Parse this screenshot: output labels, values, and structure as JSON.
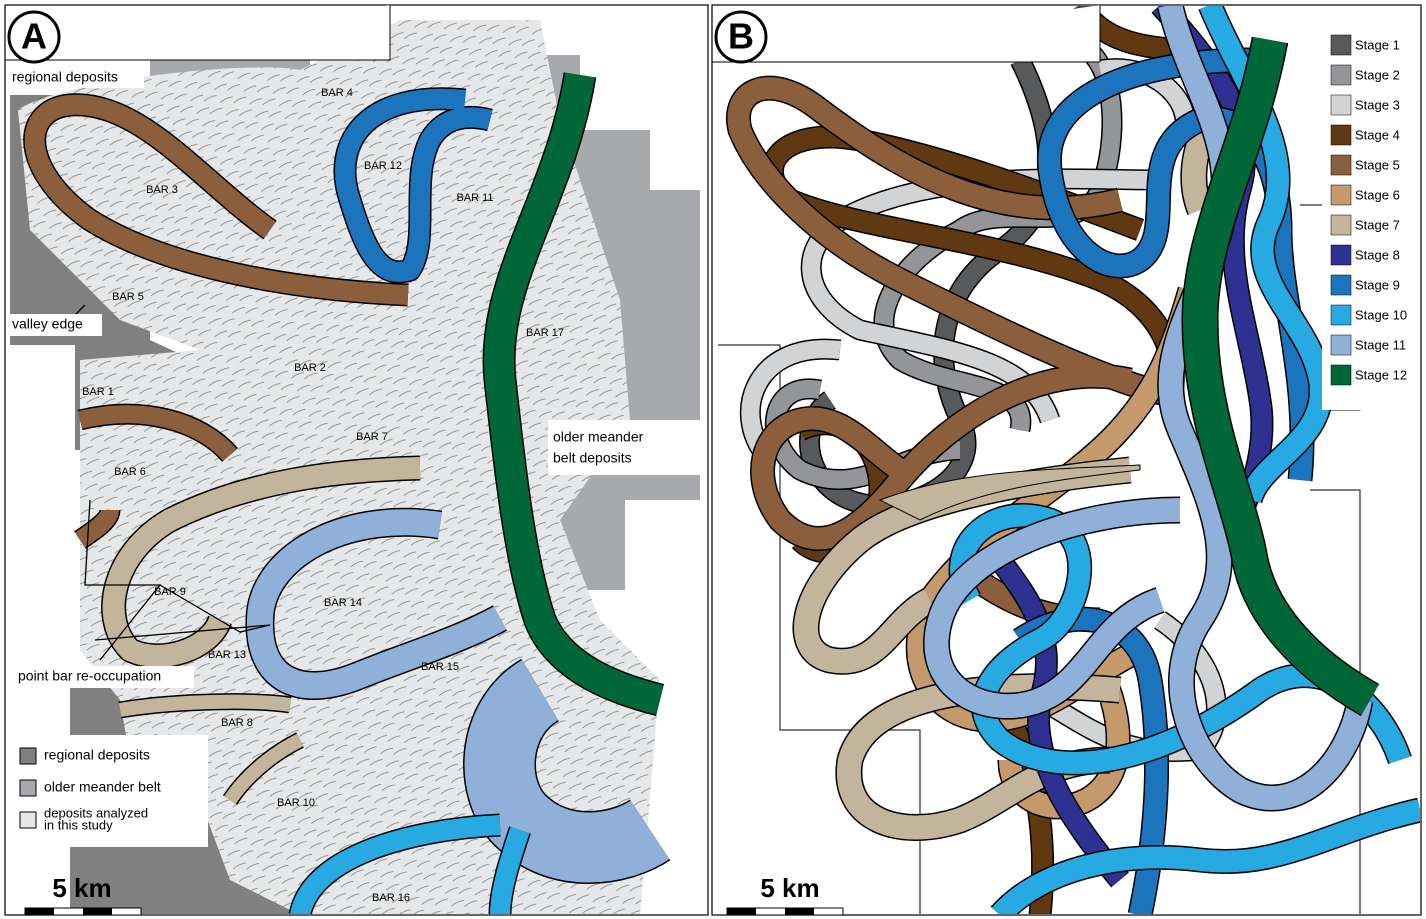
{
  "panel_a": {
    "label": "A",
    "annotations": {
      "regional": "regional deposits",
      "valley": "valley edge",
      "older": [
        "older meander",
        "belt deposits"
      ],
      "reoccupation": "point bar re-occupation"
    },
    "bars": [
      "BAR 1",
      "BAR 2",
      "BAR 3",
      "BAR 4",
      "BAR 5",
      "BAR 6",
      "BAR 7",
      "BAR 8",
      "BAR 9",
      "BAR 10",
      "BAR 11",
      "BAR 12",
      "BAR 13",
      "BAR 14",
      "BAR 15",
      "BAR 16",
      "BAR 17"
    ],
    "legend": [
      {
        "label": [
          "regional  deposits"
        ],
        "color": "#808080"
      },
      {
        "label": [
          "older meander belt"
        ],
        "color": "#a7a9ac"
      },
      {
        "label": [
          "deposits analyzed",
          "in this study"
        ],
        "color": "#e6e7e8"
      }
    ],
    "scale": "5 km"
  },
  "panel_b": {
    "label": "B",
    "legend": [
      {
        "label": "Stage 1",
        "color": "#58595b"
      },
      {
        "label": "Stage 2",
        "color": "#939598"
      },
      {
        "label": "Stage 3",
        "color": "#d1d3d4"
      },
      {
        "label": "Stage 4",
        "color": "#603913"
      },
      {
        "label": "Stage 5",
        "color": "#8b5e3c"
      },
      {
        "label": "Stage 6",
        "color": "#c49a6c"
      },
      {
        "label": "Stage 7",
        "color": "#c2b59b"
      },
      {
        "label": "Stage 8",
        "color": "#2e3192"
      },
      {
        "label": "Stage 9",
        "color": "#1c75bc"
      },
      {
        "label": "Stage 10",
        "color": "#27aae1"
      },
      {
        "label": "Stage 11",
        "color": "#8fb0d8"
      },
      {
        "label": "Stage 12",
        "color": "#006838"
      }
    ],
    "scale": "5 km"
  }
}
